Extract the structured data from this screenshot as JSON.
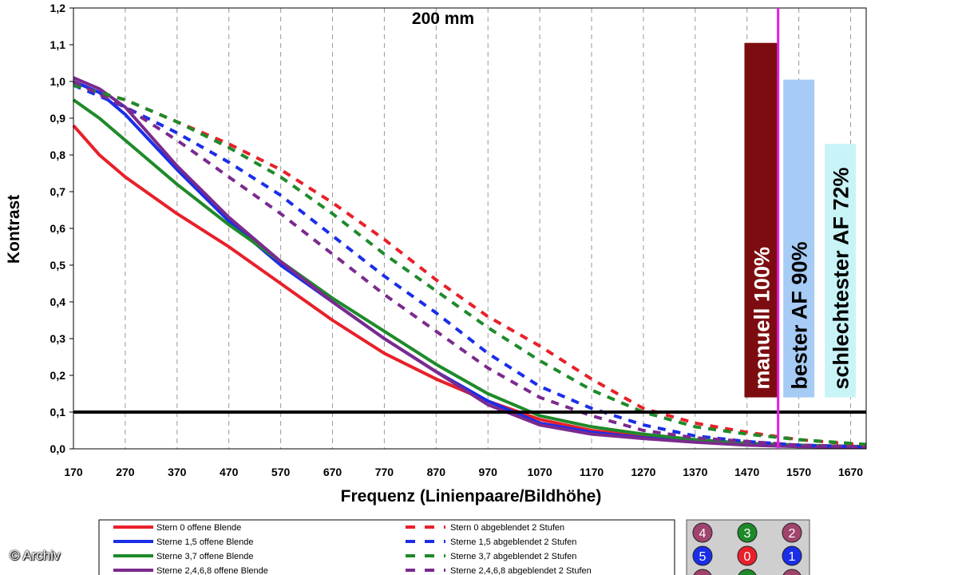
{
  "chart_data": {
    "type": "line",
    "title": "200 mm",
    "xlabel": "Frequenz (Linienpaare/Bildhöhe)",
    "ylabel": "Kontrast",
    "xlim": [
      170,
      1700
    ],
    "ylim": [
      0,
      1.2
    ],
    "x_ticks": [
      "170",
      "270",
      "370",
      "470",
      "570",
      "670",
      "770",
      "870",
      "970",
      "1070",
      "1170",
      "1270",
      "1370",
      "1470",
      "1570",
      "1670"
    ],
    "y_ticks": [
      "0,0",
      "0,1",
      "0,2",
      "0,3",
      "0,4",
      "0,5",
      "0,6",
      "0,7",
      "0,8",
      "0,9",
      "1,0",
      "1,1",
      "1,2"
    ],
    "grid": "vertical dashed",
    "reference_line": 0.1,
    "vertical_marker": 1530,
    "series": [
      {
        "name": "Stern 0 offene Blende",
        "color": "#e8202a",
        "dash": false,
        "x": [
          170,
          220,
          270,
          370,
          470,
          570,
          670,
          770,
          870,
          970,
          1070,
          1170,
          1270,
          1370,
          1470,
          1570,
          1700
        ],
        "y": [
          0.88,
          0.8,
          0.74,
          0.64,
          0.55,
          0.45,
          0.35,
          0.26,
          0.19,
          0.13,
          0.08,
          0.05,
          0.035,
          0.02,
          0.015,
          0.01,
          0.005
        ]
      },
      {
        "name": "Sterne 1,5 offene Blende",
        "color": "#1a2ee8",
        "dash": false,
        "x": [
          170,
          220,
          270,
          370,
          470,
          570,
          670,
          770,
          870,
          970,
          1070,
          1170,
          1270,
          1370,
          1470,
          1570,
          1700
        ],
        "y": [
          1.0,
          0.97,
          0.91,
          0.76,
          0.62,
          0.5,
          0.4,
          0.3,
          0.21,
          0.13,
          0.07,
          0.045,
          0.03,
          0.02,
          0.012,
          0.008,
          0.005
        ]
      },
      {
        "name": "Sterne 3,7 offene Blende",
        "color": "#1e8a2a",
        "dash": false,
        "x": [
          170,
          220,
          270,
          370,
          470,
          570,
          670,
          770,
          870,
          970,
          1070,
          1170,
          1270,
          1370,
          1470,
          1570,
          1700
        ],
        "y": [
          0.95,
          0.9,
          0.84,
          0.72,
          0.61,
          0.51,
          0.41,
          0.32,
          0.23,
          0.15,
          0.09,
          0.06,
          0.04,
          0.025,
          0.015,
          0.01,
          0.006
        ]
      },
      {
        "name": "Sterne 2,4,6,8 offene Blende",
        "color": "#7b2a8e",
        "dash": false,
        "x": [
          170,
          220,
          270,
          370,
          470,
          570,
          670,
          770,
          870,
          970,
          1070,
          1170,
          1270,
          1370,
          1470,
          1570,
          1700
        ],
        "y": [
          1.01,
          0.98,
          0.93,
          0.77,
          0.63,
          0.51,
          0.4,
          0.3,
          0.21,
          0.12,
          0.065,
          0.04,
          0.028,
          0.018,
          0.01,
          0.006,
          0.004
        ]
      },
      {
        "name": "Stern 0 abgeblendet 2 Stufen",
        "color": "#e8202a",
        "dash": true,
        "x": [
          170,
          270,
          370,
          470,
          570,
          670,
          770,
          870,
          970,
          1070,
          1170,
          1270,
          1370,
          1470,
          1570,
          1700
        ],
        "y": [
          0.99,
          0.95,
          0.89,
          0.83,
          0.76,
          0.67,
          0.57,
          0.46,
          0.36,
          0.28,
          0.19,
          0.11,
          0.07,
          0.045,
          0.025,
          0.01
        ]
      },
      {
        "name": "Sterne 1,5 abgeblendet 2 Stufen",
        "color": "#1a2ee8",
        "dash": true,
        "x": [
          170,
          270,
          370,
          470,
          570,
          670,
          770,
          870,
          970,
          1070,
          1170,
          1270,
          1370,
          1470,
          1570,
          1700
        ],
        "y": [
          0.99,
          0.93,
          0.86,
          0.78,
          0.69,
          0.58,
          0.47,
          0.37,
          0.26,
          0.17,
          0.11,
          0.065,
          0.035,
          0.02,
          0.01,
          0.005
        ]
      },
      {
        "name": "Sterne 3,7 abgeblendet 2 Stufen",
        "color": "#1e8a2a",
        "dash": true,
        "x": [
          170,
          270,
          370,
          470,
          570,
          670,
          770,
          870,
          970,
          1070,
          1170,
          1270,
          1370,
          1470,
          1570,
          1700
        ],
        "y": [
          0.99,
          0.95,
          0.89,
          0.82,
          0.74,
          0.64,
          0.53,
          0.43,
          0.33,
          0.24,
          0.16,
          0.1,
          0.06,
          0.04,
          0.025,
          0.012
        ]
      },
      {
        "name": "Sterne 2,4,6,8 abgeblendet 2 Stufen",
        "color": "#7b2a8e",
        "dash": true,
        "x": [
          170,
          270,
          370,
          470,
          570,
          670,
          770,
          870,
          970,
          1070,
          1170,
          1270,
          1370,
          1470,
          1570,
          1700
        ],
        "y": [
          1.0,
          0.93,
          0.84,
          0.74,
          0.64,
          0.53,
          0.42,
          0.32,
          0.22,
          0.14,
          0.09,
          0.05,
          0.03,
          0.02,
          0.01,
          0.005
        ]
      }
    ],
    "bars": [
      {
        "label": "manuell 100%",
        "value": 1.105,
        "bottom": 0.14,
        "x_from": 1465,
        "x_to": 1530,
        "fill": "#7d0c10",
        "text_color": "#ffffff"
      },
      {
        "label": "bester AF 90%",
        "value": 1.005,
        "bottom": 0.14,
        "x_from": 1540,
        "x_to": 1600,
        "fill": "#a6cbf5",
        "text_color": "#000000"
      },
      {
        "label": "schlechtester AF 72%",
        "value": 0.83,
        "bottom": 0.14,
        "x_from": 1620,
        "x_to": 1680,
        "fill": "#c8f4f8",
        "text_color": "#000000"
      }
    ]
  },
  "badges": [
    {
      "label": "4",
      "color": "#a0446e"
    },
    {
      "label": "3",
      "color": "#1e8a2a"
    },
    {
      "label": "2",
      "color": "#a0446e"
    },
    {
      "label": "5",
      "color": "#1a2ee8"
    },
    {
      "label": "0",
      "color": "#e8202a"
    },
    {
      "label": "1",
      "color": "#1a2ee8"
    }
  ],
  "copyright": "© Archiv"
}
